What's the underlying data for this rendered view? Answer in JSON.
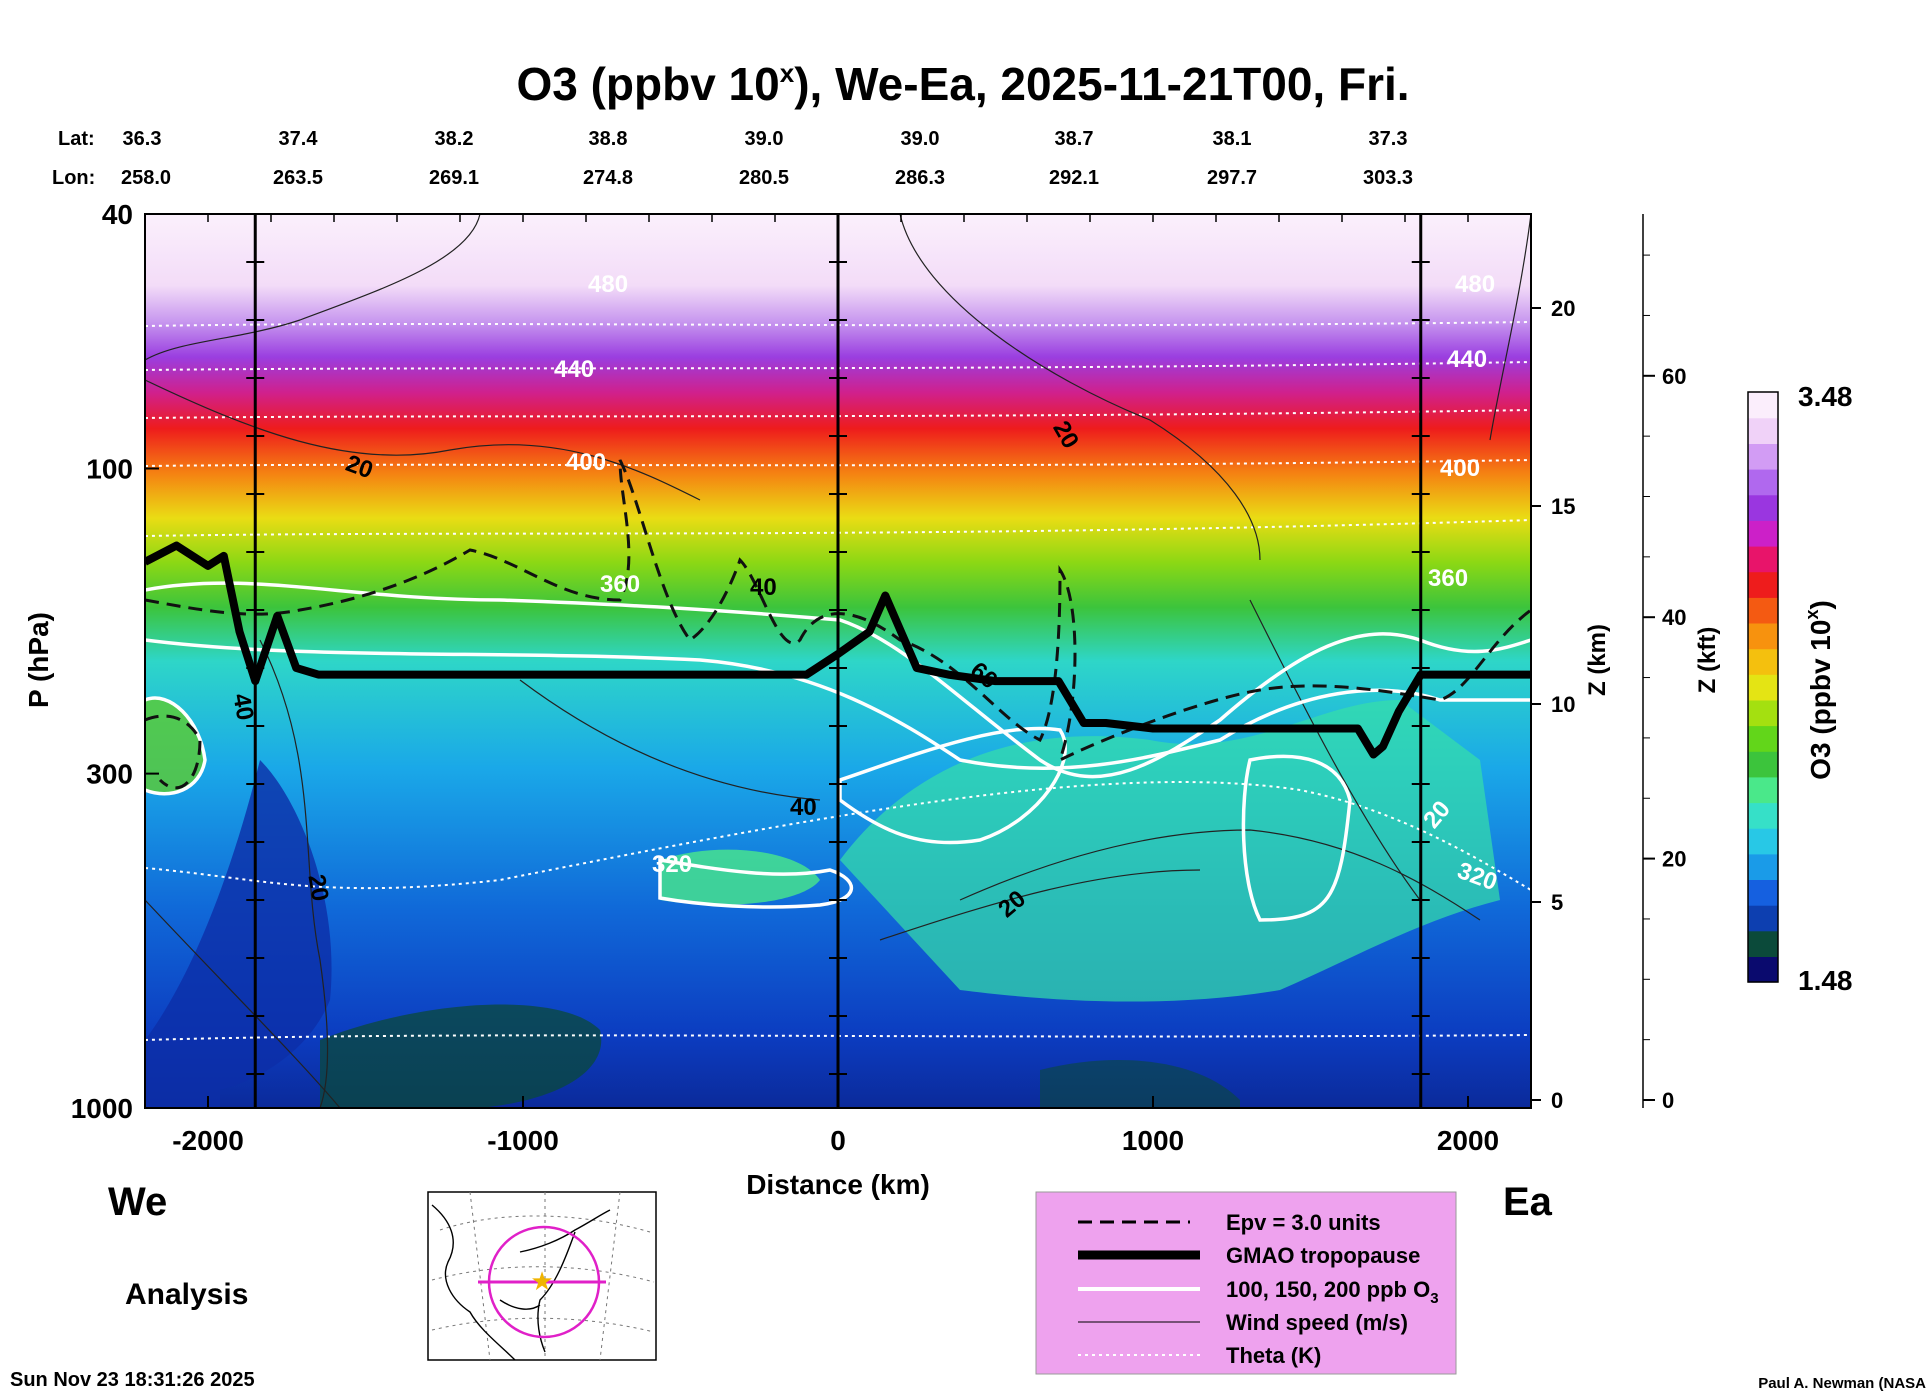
{
  "chart_data": {
    "type": "heatmap",
    "title": "O3 (ppbv 10",
    "title_sup": "x",
    "title_rest": "), We-Ea, 2025-11-21T00, Fri.",
    "header": {
      "lat_label": "Lat:",
      "lon_label": "Lon:",
      "lat": [
        "36.3",
        "37.4",
        "38.2",
        "38.8",
        "39.0",
        "39.0",
        "38.7",
        "38.1",
        "37.3"
      ],
      "lon": [
        "258.0",
        "263.5",
        "269.1",
        "274.8",
        "280.5",
        "286.3",
        "292.1",
        "297.7",
        "303.3"
      ]
    },
    "x_axis": {
      "label": "Distance (km)",
      "range": [
        -2200,
        2200
      ],
      "ticks": [
        "-2000",
        "-1000",
        "0",
        "1000",
        "2000"
      ],
      "tick_values": [
        -2000,
        -1000,
        0,
        1000,
        2000
      ]
    },
    "y_axis": {
      "label": "P (hPa)",
      "scale": "log",
      "range": [
        1000,
        40
      ],
      "ticks": [
        "40",
        "100",
        "300",
        "1000"
      ],
      "tick_values": [
        40,
        100,
        300,
        1000
      ]
    },
    "z_km_axis": {
      "label": "Z (km)",
      "ticks": [
        "0",
        "5",
        "10",
        "15",
        "20"
      ],
      "tick_values": [
        0,
        5,
        10,
        15,
        20
      ]
    },
    "z_kft_axis": {
      "label": "Z (kft)",
      "ticks": [
        "0",
        "20",
        "40",
        "60"
      ],
      "tick_values": [
        0,
        20,
        40,
        60
      ]
    },
    "colorbar": {
      "label": "O3 (ppbv 10",
      "label_sup": "x",
      "label_end": ")",
      "max_label": "3.48",
      "min_label": "1.48",
      "range": [
        1.48,
        3.48
      ],
      "colors": [
        "#0a0a6e",
        "#0b4a3a",
        "#0d3fb0",
        "#1560e0",
        "#1a9be8",
        "#28c8e6",
        "#36e0c8",
        "#4ae88a",
        "#3cc43c",
        "#62d61a",
        "#a4e010",
        "#e4e414",
        "#f4c00e",
        "#f7920e",
        "#f45a12",
        "#ee1c1c",
        "#e8146a",
        "#cc20c8",
        "#9a36e0",
        "#b068ee",
        "#d29cf4",
        "#f0d2f8",
        "#fbeefc"
      ]
    },
    "vertical_markers_km": [
      -1850,
      0,
      1850
    ],
    "west_label": "We",
    "east_label": "Ea",
    "mode_label": "Analysis",
    "contour_labels": {
      "theta": [
        "480",
        "440",
        "400",
        "360",
        "320"
      ],
      "wind": [
        "20",
        "40",
        "60"
      ]
    },
    "legend": [
      {
        "label": "Epv = 3.0 units",
        "style": "dashed"
      },
      {
        "label": "GMAO tropopause",
        "style": "thick"
      },
      {
        "label": "100, 150, 200 ppb O",
        "sub": "3",
        "style": "white"
      },
      {
        "label": "Wind speed (m/s)",
        "style": "thin"
      },
      {
        "label": "Theta (K)",
        "style": "dotted"
      }
    ],
    "tropopause": {
      "x": [
        -2200,
        -2100,
        -2000,
        -1950,
        -1900,
        -1850,
        -1780,
        -1720,
        -1650,
        -1500,
        -1000,
        -500,
        -100,
        0,
        100,
        150,
        250,
        350,
        500,
        700,
        780,
        850,
        1000,
        1300,
        1500,
        1650,
        1700,
        1730,
        1780,
        1850,
        2000,
        2200
      ],
      "p": [
        140,
        132,
        142,
        137,
        180,
        215,
        170,
        205,
        210,
        210,
        210,
        210,
        210,
        195,
        180,
        158,
        205,
        210,
        215,
        215,
        250,
        250,
        255,
        255,
        255,
        255,
        280,
        272,
        240,
        210,
        210,
        210
      ]
    },
    "footer_left": "Sun Nov 23 18:31:26 2025",
    "footer_right": "Paul A. Newman (NASA"
  }
}
